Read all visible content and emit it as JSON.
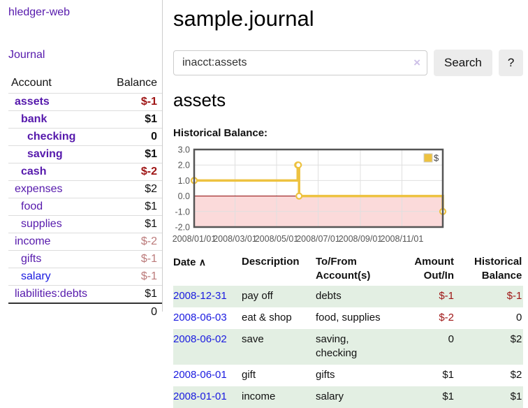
{
  "colors": {
    "purple_link": "#5619ac",
    "blue_link": "#1a1ae0",
    "negative_strong": "#9e1414",
    "negative_soft": "#bb7a7a",
    "row_stripe_green": "#e3efe3",
    "button_bg": "#ececec"
  },
  "sidebar": {
    "brand": "hledger-web",
    "journal_link": "Journal",
    "table": {
      "account_header": "Account",
      "balance_header": "Balance",
      "rows": [
        {
          "name": "assets",
          "balance": "$-1",
          "indent": 0,
          "bold": true,
          "neg": "strong",
          "link": "purple"
        },
        {
          "name": "bank",
          "balance": "$1",
          "indent": 1,
          "bold": true,
          "neg": null,
          "link": "purple"
        },
        {
          "name": "checking",
          "balance": "0",
          "indent": 2,
          "bold": true,
          "neg": null,
          "link": "purple"
        },
        {
          "name": "saving",
          "balance": "$1",
          "indent": 2,
          "bold": true,
          "neg": null,
          "link": "purple"
        },
        {
          "name": "cash",
          "balance": "$-2",
          "indent": 1,
          "bold": true,
          "neg": "strong",
          "link": "purple"
        },
        {
          "name": "expenses",
          "balance": "$2",
          "indent": 0,
          "bold": false,
          "neg": null,
          "link": "purple"
        },
        {
          "name": "food",
          "balance": "$1",
          "indent": 1,
          "bold": false,
          "neg": null,
          "link": "purple"
        },
        {
          "name": "supplies",
          "balance": "$1",
          "indent": 1,
          "bold": false,
          "neg": null,
          "link": "purple"
        },
        {
          "name": "income",
          "balance": "$-2",
          "indent": 0,
          "bold": false,
          "neg": "soft",
          "link": "purple"
        },
        {
          "name": "gifts",
          "balance": "$-1",
          "indent": 1,
          "bold": false,
          "neg": "soft",
          "link": "purple"
        },
        {
          "name": "salary",
          "balance": "$-1",
          "indent": 1,
          "bold": false,
          "neg": "soft",
          "link": "blue"
        },
        {
          "name": "liabilities:debts",
          "balance": "$1",
          "indent": 0,
          "bold": false,
          "neg": null,
          "link": "purple"
        }
      ],
      "total": "0"
    }
  },
  "main": {
    "title": "sample.journal",
    "search": {
      "value": "inacct:assets",
      "clear_icon": "×",
      "search_label": "Search",
      "help_label": "?"
    },
    "account_heading": "assets",
    "chart_label": "Historical Balance:",
    "register": {
      "headers": {
        "date": "Date",
        "description": "Description",
        "accounts": "To/From Account(s)",
        "amount": "Amount Out/In",
        "balance": "Historical Balance"
      },
      "sort_indicator": "∧",
      "rows": [
        {
          "date": "2008-12-31",
          "description": "pay off",
          "accounts": "debts",
          "amount": "$-1",
          "balance": "$-1",
          "amount_neg": true,
          "balance_neg": true
        },
        {
          "date": "2008-06-03",
          "description": "eat & shop",
          "accounts": "food, supplies",
          "amount": "$-2",
          "balance": "0",
          "amount_neg": true,
          "balance_neg": false
        },
        {
          "date": "2008-06-02",
          "description": "save",
          "accounts": "saving, checking",
          "amount": "0",
          "balance": "$2",
          "amount_neg": false,
          "balance_neg": false
        },
        {
          "date": "2008-06-01",
          "description": "gift",
          "accounts": "gifts",
          "amount": "$1",
          "balance": "$2",
          "amount_neg": false,
          "balance_neg": false
        },
        {
          "date": "2008-01-01",
          "description": "income",
          "accounts": "salary",
          "amount": "$1",
          "balance": "$1",
          "amount_neg": false,
          "balance_neg": false
        }
      ]
    }
  },
  "chart_data": {
    "type": "line",
    "title": "Historical Balance:",
    "step": true,
    "series": [
      {
        "name": "$",
        "color": "#edc240",
        "points": [
          [
            "2008-01-01",
            1
          ],
          [
            "2008-06-01",
            2
          ],
          [
            "2008-06-02",
            2
          ],
          [
            "2008-06-03",
            0
          ],
          [
            "2008-12-31",
            -1
          ]
        ]
      }
    ],
    "x_range": [
      "2008-01-01",
      "2008-12-31"
    ],
    "ylim": [
      -2,
      3
    ],
    "y_ticks": [
      3,
      2,
      1,
      0,
      -1,
      -2
    ],
    "x_ticks": [
      "2008/01/01",
      "2008/03/01",
      "2008/05/01",
      "2008/07/01",
      "2008/09/01",
      "2008/11/01"
    ],
    "grid": true,
    "legend_position": "top-right",
    "negative_fill": "#fbdada",
    "zero_line_color": "#8b0000"
  }
}
